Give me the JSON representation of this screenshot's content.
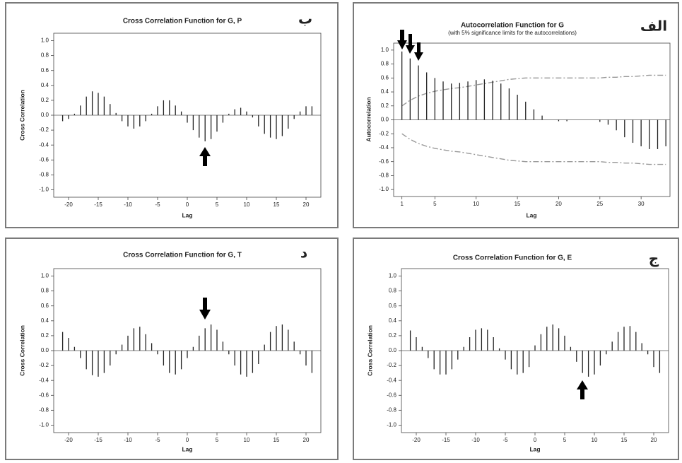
{
  "chart_data": [
    {
      "type": "bar",
      "title": "Cross Correlation Function for G, P",
      "label": "ب",
      "ylabel": "Cross Correlation",
      "xlabel": "Lag",
      "x": [
        -21,
        -20,
        -19,
        -18,
        -17,
        -16,
        -15,
        -14,
        -13,
        -12,
        -11,
        -10,
        -9,
        -8,
        -7,
        -6,
        -5,
        -4,
        -3,
        -2,
        -1,
        0,
        1,
        2,
        3,
        4,
        5,
        6,
        7,
        8,
        9,
        10,
        11,
        12,
        13,
        14,
        15,
        16,
        17,
        18,
        19,
        20,
        21
      ],
      "values": [
        -0.08,
        -0.05,
        0.02,
        0.13,
        0.25,
        0.32,
        0.3,
        0.25,
        0.15,
        0.03,
        -0.08,
        -0.15,
        -0.18,
        -0.15,
        -0.08,
        0.02,
        0.12,
        0.2,
        0.2,
        0.13,
        0.05,
        -0.1,
        -0.2,
        -0.3,
        -0.35,
        -0.32,
        -0.22,
        -0.1,
        0.02,
        0.08,
        0.1,
        0.05,
        -0.03,
        -0.15,
        -0.25,
        -0.3,
        -0.32,
        -0.28,
        -0.18,
        -0.05,
        0.05,
        0.12,
        0.12
      ],
      "color": "#222222",
      "xlim": [
        -22.5,
        22.5
      ],
      "xticks": [
        -20,
        -15,
        -10,
        -5,
        0,
        5,
        10,
        15,
        20
      ],
      "ylim": [
        -1.1,
        1.1
      ],
      "yticks": [
        {
          "value": -1,
          "label": "-1.0"
        },
        {
          "value": -0.8,
          "label": "-0.8"
        },
        {
          "value": -0.6,
          "label": "-0.6"
        },
        {
          "value": -0.4,
          "label": "-0.4"
        },
        {
          "value": -0.2,
          "label": "-0.2"
        },
        {
          "value": 0,
          "label": "0.0"
        },
        {
          "value": 0.2,
          "label": "0.2"
        },
        {
          "value": 0.4,
          "label": "0.4"
        },
        {
          "value": 0.6,
          "label": "0.6"
        },
        {
          "value": 0.8,
          "label": "0.8"
        },
        {
          "value": 1,
          "label": "1.0"
        }
      ]
    },
    {
      "type": "bar",
      "title": "Autocorrelation Function for G",
      "subtitle": "(with 5% significance limits for the autocorrelations)",
      "label": "الف",
      "ylabel": "Autocorrelation",
      "xlabel": "Lag",
      "x": [
        1,
        2,
        3,
        4,
        5,
        6,
        7,
        8,
        9,
        10,
        11,
        12,
        13,
        14,
        15,
        16,
        17,
        18,
        19,
        20,
        21,
        22,
        23,
        24,
        25,
        26,
        27,
        28,
        29,
        30,
        31,
        32,
        33
      ],
      "values": [
        0.98,
        0.88,
        0.78,
        0.68,
        0.6,
        0.55,
        0.52,
        0.53,
        0.55,
        0.57,
        0.58,
        0.56,
        0.52,
        0.45,
        0.36,
        0.26,
        0.15,
        0.06,
        0,
        -0.02,
        -0.02,
        0,
        0,
        0,
        -0.03,
        -0.07,
        -0.15,
        -0.25,
        -0.33,
        -0.38,
        -0.42,
        -0.42,
        -0.38
      ],
      "significance_upper": [
        0.2,
        0.28,
        0.34,
        0.38,
        0.41,
        0.43,
        0.45,
        0.46,
        0.48,
        0.5,
        0.52,
        0.54,
        0.56,
        0.58,
        0.59,
        0.6,
        0.6,
        0.6,
        0.6,
        0.6,
        0.6,
        0.6,
        0.6,
        0.6,
        0.6,
        0.61,
        0.61,
        0.62,
        0.62,
        0.63,
        0.64,
        0.64,
        0.64
      ],
      "significance_lower": [
        -0.2,
        -0.28,
        -0.34,
        -0.38,
        -0.41,
        -0.43,
        -0.45,
        -0.46,
        -0.48,
        -0.5,
        -0.52,
        -0.54,
        -0.56,
        -0.58,
        -0.59,
        -0.6,
        -0.6,
        -0.6,
        -0.6,
        -0.6,
        -0.6,
        -0.6,
        -0.6,
        -0.6,
        -0.6,
        -0.61,
        -0.61,
        -0.62,
        -0.62,
        -0.63,
        -0.64,
        -0.64,
        -0.64
      ],
      "color": "#222222",
      "limit_color": "#999999",
      "xlim": [
        0,
        33.5
      ],
      "xticks": [
        1,
        5,
        10,
        15,
        20,
        25,
        30
      ],
      "ylim": [
        -1.1,
        1.1
      ],
      "yticks": [
        {
          "value": -1,
          "label": "-1.0"
        },
        {
          "value": -0.8,
          "label": "-0.8"
        },
        {
          "value": -0.6,
          "label": "-0.6"
        },
        {
          "value": -0.4,
          "label": "-0.4"
        },
        {
          "value": -0.2,
          "label": "-0.2"
        },
        {
          "value": 0,
          "label": "0.0"
        },
        {
          "value": 0.2,
          "label": "0.2"
        },
        {
          "value": 0.4,
          "label": "0.4"
        },
        {
          "value": 0.6,
          "label": "0.6"
        },
        {
          "value": 0.8,
          "label": "0.8"
        },
        {
          "value": 1,
          "label": "1.0"
        }
      ]
    },
    {
      "type": "bar",
      "title": "Cross Correlation Function for G, T",
      "label": "د",
      "ylabel": "Cross Correlation",
      "xlabel": "Lag",
      "x": [
        -21,
        -20,
        -19,
        -18,
        -17,
        -16,
        -15,
        -14,
        -13,
        -12,
        -11,
        -10,
        -9,
        -8,
        -7,
        -6,
        -5,
        -4,
        -3,
        -2,
        -1,
        0,
        1,
        2,
        3,
        4,
        5,
        6,
        7,
        8,
        9,
        10,
        11,
        12,
        13,
        14,
        15,
        16,
        17,
        18,
        19,
        20,
        21
      ],
      "values": [
        0.25,
        0.17,
        0.05,
        -0.1,
        -0.25,
        -0.33,
        -0.35,
        -0.3,
        -0.2,
        -0.05,
        0.08,
        0.2,
        0.3,
        0.32,
        0.22,
        0.1,
        -0.05,
        -0.2,
        -0.3,
        -0.32,
        -0.25,
        -0.1,
        0.05,
        0.2,
        0.3,
        0.35,
        0.28,
        0.12,
        -0.05,
        -0.2,
        -0.32,
        -0.35,
        -0.3,
        -0.18,
        0.08,
        0.25,
        0.33,
        0.35,
        0.28,
        0.12,
        -0.05,
        -0.2,
        -0.3
      ],
      "color": "#222222",
      "xlim": [
        -22.5,
        22.5
      ],
      "xticks": [
        -20,
        -15,
        -10,
        -5,
        0,
        5,
        10,
        15,
        20
      ],
      "ylim": [
        -1.1,
        1.1
      ],
      "yticks": [
        {
          "value": -1,
          "label": "-1.0"
        },
        {
          "value": -0.8,
          "label": "-0.8"
        },
        {
          "value": -0.6,
          "label": "-0.6"
        },
        {
          "value": -0.4,
          "label": "-0.4"
        },
        {
          "value": -0.2,
          "label": "-0.2"
        },
        {
          "value": 0,
          "label": "0.0"
        },
        {
          "value": 0.2,
          "label": "0.2"
        },
        {
          "value": 0.4,
          "label": "0.4"
        },
        {
          "value": 0.6,
          "label": "0.6"
        },
        {
          "value": 0.8,
          "label": "0.8"
        },
        {
          "value": 1,
          "label": "1.0"
        }
      ]
    },
    {
      "type": "bar",
      "title": "Cross Correlation Function for G, E",
      "label": "ج",
      "ylabel": "Cross Correlation",
      "xlabel": "Lag",
      "x": [
        -21,
        -20,
        -19,
        -18,
        -17,
        -16,
        -15,
        -14,
        -13,
        -12,
        -11,
        -10,
        -9,
        -8,
        -7,
        -6,
        -5,
        -4,
        -3,
        -2,
        -1,
        0,
        1,
        2,
        3,
        4,
        5,
        6,
        7,
        8,
        9,
        10,
        11,
        12,
        13,
        14,
        15,
        16,
        17,
        18,
        19,
        20,
        21
      ],
      "values": [
        0.27,
        0.18,
        0.05,
        -0.1,
        -0.25,
        -0.32,
        -0.32,
        -0.25,
        -0.12,
        0.05,
        0.18,
        0.28,
        0.3,
        0.28,
        0.18,
        0.03,
        -0.12,
        -0.25,
        -0.32,
        -0.3,
        -0.22,
        0.07,
        0.22,
        0.32,
        0.35,
        0.3,
        0.2,
        0.05,
        -0.15,
        -0.3,
        -0.35,
        -0.32,
        -0.2,
        -0.05,
        0.12,
        0.25,
        0.32,
        0.33,
        0.25,
        0.1,
        -0.05,
        -0.22,
        -0.3
      ],
      "color": "#222222",
      "xlim": [
        -22.5,
        22.5
      ],
      "xticks": [
        -20,
        -15,
        -10,
        -5,
        0,
        5,
        10,
        15,
        20
      ],
      "ylim": [
        -1.1,
        1.1
      ],
      "yticks": [
        {
          "value": -1,
          "label": "-1.0"
        },
        {
          "value": -0.8,
          "label": "-0.8"
        },
        {
          "value": -0.6,
          "label": "-0.6"
        },
        {
          "value": -0.4,
          "label": "-0.4"
        },
        {
          "value": -0.2,
          "label": "-0.2"
        },
        {
          "value": 0,
          "label": "0.0"
        },
        {
          "value": 0.2,
          "label": "0.2"
        },
        {
          "value": 0.4,
          "label": "0.4"
        },
        {
          "value": 0.6,
          "label": "0.6"
        },
        {
          "value": 0.8,
          "label": "0.8"
        },
        {
          "value": 1,
          "label": "1.0"
        }
      ]
    }
  ]
}
